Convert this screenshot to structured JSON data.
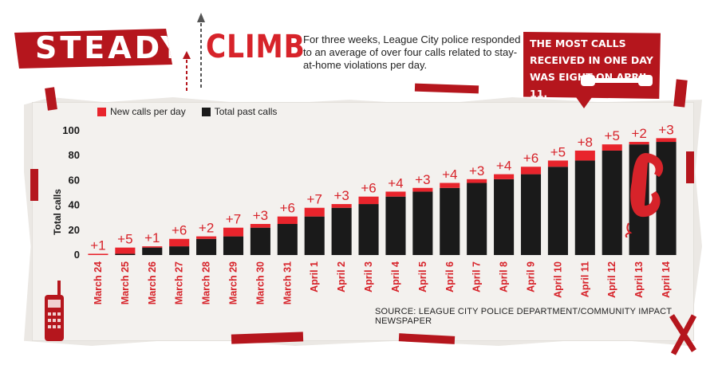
{
  "header": {
    "title_part1": "STEADY",
    "title_part2": "CLIMB",
    "subtitle": "For three weeks, League City police responded to an average of over four calls related to stay-at-home violations per day."
  },
  "callout": {
    "text": "THE MOST CALLS RECEIVED IN ONE DAY WAS EIGHT ON APRIL 11."
  },
  "source": "SOURCE: LEAGUE CITY POLICE DEPARTMENT/COMMUNITY IMPACT NEWSPAPER",
  "colors": {
    "new_calls": "#e8242c",
    "total_calls": "#1a1a1a",
    "accent": "#b5161d",
    "label_red": "#d7232a"
  },
  "chart_data": {
    "type": "bar",
    "stacked": true,
    "categories": [
      "March 24",
      "March 25",
      "March 26",
      "March 27",
      "March 28",
      "March 29",
      "March 30",
      "March 31",
      "April 1",
      "April 2",
      "April 3",
      "April 4",
      "April 5",
      "April 6",
      "April 7",
      "April 8",
      "April 9",
      "April 10",
      "April 11",
      "April 12",
      "April 13",
      "April 14"
    ],
    "series": [
      {
        "name": "Total past calls",
        "values": [
          0,
          1,
          6,
          7,
          13,
          15,
          22,
          25,
          31,
          38,
          41,
          47,
          51,
          54,
          58,
          61,
          65,
          71,
          76,
          84,
          89,
          91
        ]
      },
      {
        "name": "New calls per day",
        "values": [
          1,
          5,
          1,
          6,
          2,
          7,
          3,
          6,
          7,
          3,
          6,
          4,
          3,
          4,
          3,
          4,
          6,
          5,
          8,
          5,
          2,
          3
        ]
      }
    ],
    "data_labels": [
      "+1",
      "+5",
      "+1",
      "+6",
      "+2",
      "+7",
      "+3",
      "+6",
      "+7",
      "+3",
      "+6",
      "+4",
      "+3",
      "+4",
      "+3",
      "+4",
      "+6",
      "+5",
      "+8",
      "+5",
      "+2",
      "+3"
    ],
    "ylabel": "Total calls",
    "xlabel": "",
    "ylim": [
      0,
      100
    ],
    "yticks": [
      0,
      20,
      40,
      60,
      80,
      100
    ],
    "legend_position": "top-left",
    "grid": false
  }
}
